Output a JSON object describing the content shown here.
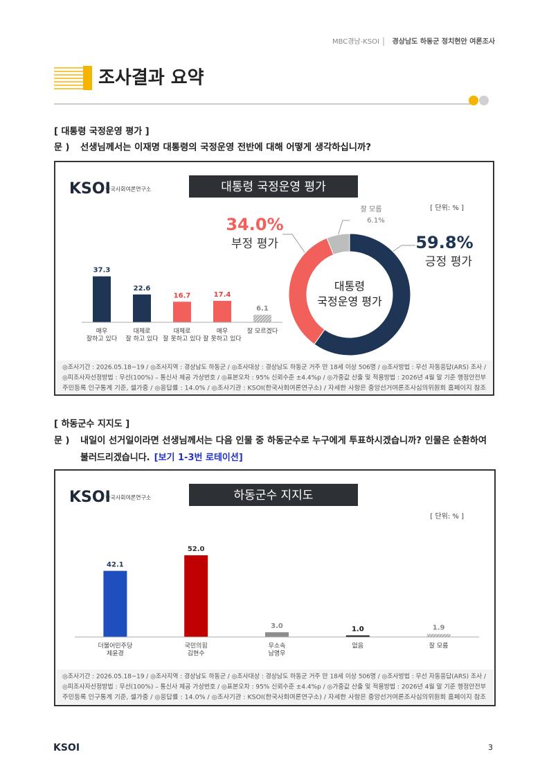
{
  "header": {
    "source": "MBC경남-KSOI",
    "survey": "경상남도 하동군 정치현안 여론조사"
  },
  "title": "조사결과 요약",
  "sections": [
    {
      "heading": "[ 대통령 국정운영 평가 ]",
      "prefix": "문 )",
      "question": [
        "선생님께서는 이재명 대통령의 국정운영 전반에 대해 어떻게 생각하십니까?"
      ]
    },
    {
      "heading": "[ 하동군수 지지도 ]",
      "prefix": "문 )",
      "question": [
        "내일이 선거일이라면 선생님께서는 다음 인물 중 하동군수로 누구에게 투표하시겠습니까? 인물은 순환하여",
        "불러드리겠습니다."
      ],
      "highlight": "[보기 1-3번 로테이션]"
    }
  ],
  "chart_data": [
    {
      "type": "bar",
      "logo": "KSOI",
      "logo_subtitle": "한국사회여론연구소",
      "title": "대통령 국정운영 평가",
      "unit": "[ 단위: % ]",
      "categories": [
        [
          "매우",
          "잘하고 있다"
        ],
        [
          "대체로",
          "잘 하고 있다"
        ],
        [
          "대체로",
          "잘 못하고 있다"
        ],
        [
          "매우",
          "잘 못하고 있다"
        ],
        [
          "잘 모르겠다"
        ]
      ],
      "values": [
        37.3,
        22.6,
        16.7,
        17.4,
        6.1
      ],
      "colors": [
        "#1e3556",
        "#1e3556",
        "#f2605b",
        "#f2605b",
        "#9a9a9a"
      ],
      "label_colors": [
        "#1e3556",
        "#1e3556",
        "#e0413b",
        "#e0413b",
        "#888888"
      ],
      "patterns": [
        "solid",
        "solid",
        "solid",
        "solid",
        "hatched"
      ],
      "ylim": [
        0,
        45
      ],
      "notes": [
        "◎조사기간 : 2026.05.18~19 / ◎조사지역 : 경상남도 하동군 / ◎조사대상 : 경상남도 하동군 거주 만 18세 이상 506명 / ◎조사방법 : 무선 자동응답(ARS) 조사 /",
        "◎피조사자선정방법 : 무선(100%) – 통신사 제공 가상번호 / ◎표본오차 : 95% 신뢰수준 ±4.4%p / ◎가중값 산출 및 적용방법 : 2026년 4월 말 기준 행정안전부",
        "주민등록 인구통계 기준, 셀가중 / ◎응답률 : 14.0% / ◎조사기관 : KSOI(한국사회여론연구소) / 자세한 사항은 중앙선거여론조사심의위원회 홈페이지 참조"
      ]
    },
    {
      "type": "pie",
      "title": [
        "대통령",
        "국정운영 평가"
      ],
      "categories": [
        "긍정 평가",
        "부정 평가",
        "잘 모름"
      ],
      "values": [
        59.8,
        34.0,
        6.1
      ],
      "value_labels": [
        "59.8%",
        "34.0%",
        "6.1%"
      ],
      "colors": [
        "#1e3556",
        "#f2605b",
        "#bdbdbd"
      ]
    },
    {
      "type": "bar",
      "logo": "KSOI",
      "logo_subtitle": "한국사회여론연구소",
      "title": "하동군수 지지도",
      "unit": "[ 단위: % ]",
      "categories": [
        [
          "더불어민주당",
          "제윤경"
        ],
        [
          "국민의힘",
          "김현수"
        ],
        [
          "무소속",
          "남명우"
        ],
        [
          "없음"
        ],
        [
          "잘 모름"
        ]
      ],
      "values": [
        42.1,
        52.0,
        3.0,
        1.0,
        1.9
      ],
      "value_labels": [
        "42.1",
        "52.0",
        "3.0",
        "1.0",
        "1.9"
      ],
      "colors": [
        "#1f4fbf",
        "#c00000",
        "#8c8c8c",
        "#111111",
        "#9a9a9a"
      ],
      "label_colors": [
        "#1e3556",
        "#333333",
        "#888888",
        "#111111",
        "#888888"
      ],
      "patterns": [
        "solid",
        "solid",
        "solid",
        "solid",
        "hatched"
      ],
      "ylim": [
        0,
        60
      ],
      "notes": [
        "◎조사기간 : 2026.05.18~19 / ◎조사지역 : 경상남도 하동군 / ◎조사대상 : 경상남도 하동군 거주 만 18세 이상 506명 / ◎조사방법 : 무선 자동응답(ARS) 조사 /",
        "◎피조사자선정방법 : 무선(100%) – 통신사 제공 가상번호 / ◎표본오차 : 95% 신뢰수준 ±4.4%p / ◎가중값 산출 및 적용방법 : 2026년 4월 말 기준 행정안전부",
        "주민등록 인구통계 기준, 셀가중 / ◎응답률 : 14.0% / ◎조사기관 : KSOI(한국사회여론연구소) / 자세한 사항은 중앙선거여론조사심의위원회 홈페이지 참조"
      ]
    }
  ],
  "footer": {
    "logo": "KSOI",
    "page": 3
  }
}
